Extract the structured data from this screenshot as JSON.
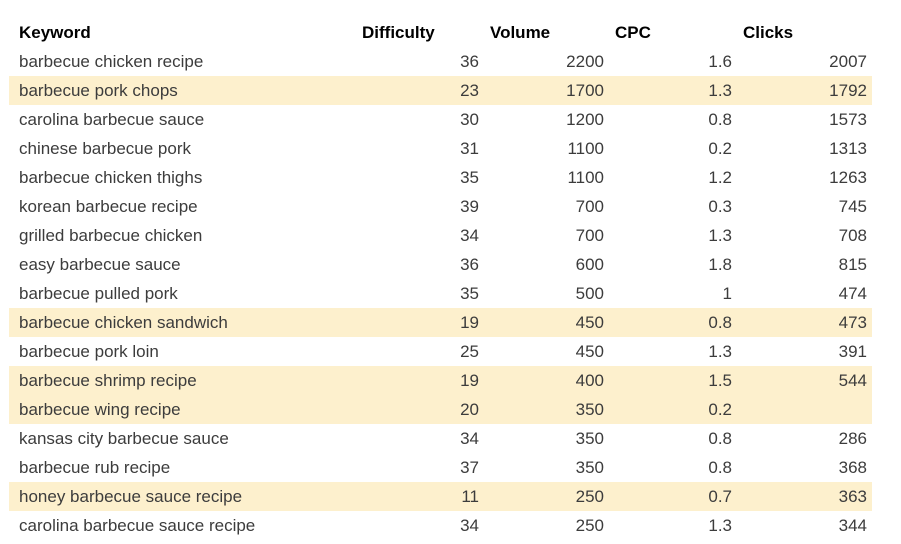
{
  "colors": {
    "background": "#ffffff",
    "highlight": "#fdf0cd",
    "header_text": "#000000",
    "body_text": "#3c3c3c"
  },
  "table": {
    "headers": [
      {
        "id": "keyword",
        "label": "Keyword"
      },
      {
        "id": "difficulty",
        "label": "Difficulty"
      },
      {
        "id": "volume",
        "label": "Volume"
      },
      {
        "id": "cpc",
        "label": "CPC"
      },
      {
        "id": "clicks",
        "label": "Clicks"
      }
    ],
    "rows": [
      {
        "keyword": "barbecue chicken recipe",
        "difficulty": "36",
        "volume": "2200",
        "cpc": "1.6",
        "clicks": "2007",
        "highlighted": false
      },
      {
        "keyword": "barbecue pork chops",
        "difficulty": "23",
        "volume": "1700",
        "cpc": "1.3",
        "clicks": "1792",
        "highlighted": true
      },
      {
        "keyword": "carolina barbecue sauce",
        "difficulty": "30",
        "volume": "1200",
        "cpc": "0.8",
        "clicks": "1573",
        "highlighted": false
      },
      {
        "keyword": "chinese barbecue pork",
        "difficulty": "31",
        "volume": "1100",
        "cpc": "0.2",
        "clicks": "1313",
        "highlighted": false
      },
      {
        "keyword": "barbecue chicken thighs",
        "difficulty": "35",
        "volume": "1100",
        "cpc": "1.2",
        "clicks": "1263",
        "highlighted": false
      },
      {
        "keyword": "korean barbecue recipe",
        "difficulty": "39",
        "volume": "700",
        "cpc": "0.3",
        "clicks": "745",
        "highlighted": false
      },
      {
        "keyword": "grilled barbecue chicken",
        "difficulty": "34",
        "volume": "700",
        "cpc": "1.3",
        "clicks": "708",
        "highlighted": false
      },
      {
        "keyword": "easy barbecue sauce",
        "difficulty": "36",
        "volume": "600",
        "cpc": "1.8",
        "clicks": "815",
        "highlighted": false
      },
      {
        "keyword": "barbecue pulled pork",
        "difficulty": "35",
        "volume": "500",
        "cpc": "1",
        "clicks": "474",
        "highlighted": false
      },
      {
        "keyword": "barbecue chicken sandwich",
        "difficulty": "19",
        "volume": "450",
        "cpc": "0.8",
        "clicks": "473",
        "highlighted": true
      },
      {
        "keyword": "barbecue pork loin",
        "difficulty": "25",
        "volume": "450",
        "cpc": "1.3",
        "clicks": "391",
        "highlighted": false
      },
      {
        "keyword": "barbecue shrimp recipe",
        "difficulty": "19",
        "volume": "400",
        "cpc": "1.5",
        "clicks": "544",
        "highlighted": true
      },
      {
        "keyword": "barbecue wing recipe",
        "difficulty": "20",
        "volume": "350",
        "cpc": "0.2",
        "clicks": "",
        "highlighted": true
      },
      {
        "keyword": "kansas city barbecue sauce",
        "difficulty": "34",
        "volume": "350",
        "cpc": "0.8",
        "clicks": "286",
        "highlighted": false
      },
      {
        "keyword": "barbecue rub recipe",
        "difficulty": "37",
        "volume": "350",
        "cpc": "0.8",
        "clicks": "368",
        "highlighted": false
      },
      {
        "keyword": "honey barbecue sauce recipe",
        "difficulty": "11",
        "volume": "250",
        "cpc": "0.7",
        "clicks": "363",
        "highlighted": true
      },
      {
        "keyword": "carolina barbecue sauce recipe",
        "difficulty": "34",
        "volume": "250",
        "cpc": "1.3",
        "clicks": "344",
        "highlighted": false
      }
    ]
  },
  "chart_data": {
    "type": "table",
    "title": "",
    "columns": [
      "Keyword",
      "Difficulty",
      "Volume",
      "CPC",
      "Clicks"
    ],
    "rows": [
      [
        "barbecue chicken recipe",
        36,
        2200,
        1.6,
        2007
      ],
      [
        "barbecue pork chops",
        23,
        1700,
        1.3,
        1792
      ],
      [
        "carolina barbecue sauce",
        30,
        1200,
        0.8,
        1573
      ],
      [
        "chinese barbecue pork",
        31,
        1100,
        0.2,
        1313
      ],
      [
        "barbecue chicken thighs",
        35,
        1100,
        1.2,
        1263
      ],
      [
        "korean barbecue recipe",
        39,
        700,
        0.3,
        745
      ],
      [
        "grilled barbecue chicken",
        34,
        700,
        1.3,
        708
      ],
      [
        "easy barbecue sauce",
        36,
        600,
        1.8,
        815
      ],
      [
        "barbecue pulled pork",
        35,
        500,
        1,
        474
      ],
      [
        "barbecue chicken sandwich",
        19,
        450,
        0.8,
        473
      ],
      [
        "barbecue pork loin",
        25,
        450,
        1.3,
        391
      ],
      [
        "barbecue shrimp recipe",
        19,
        400,
        1.5,
        544
      ],
      [
        "barbecue wing recipe",
        20,
        350,
        0.2,
        null
      ],
      [
        "kansas city barbecue sauce",
        34,
        350,
        0.8,
        286
      ],
      [
        "barbecue rub recipe",
        37,
        350,
        0.8,
        368
      ],
      [
        "honey barbecue sauce recipe",
        11,
        250,
        0.7,
        363
      ],
      [
        "carolina barbecue sauce recipe",
        34,
        250,
        1.3,
        344
      ]
    ],
    "highlighted_row_indices": [
      1,
      9,
      11,
      12,
      15
    ],
    "highlight_color": "#fdf0cd",
    "layout": {
      "grid": false,
      "numeric_alignment": "right",
      "header_alignment": "left"
    }
  }
}
